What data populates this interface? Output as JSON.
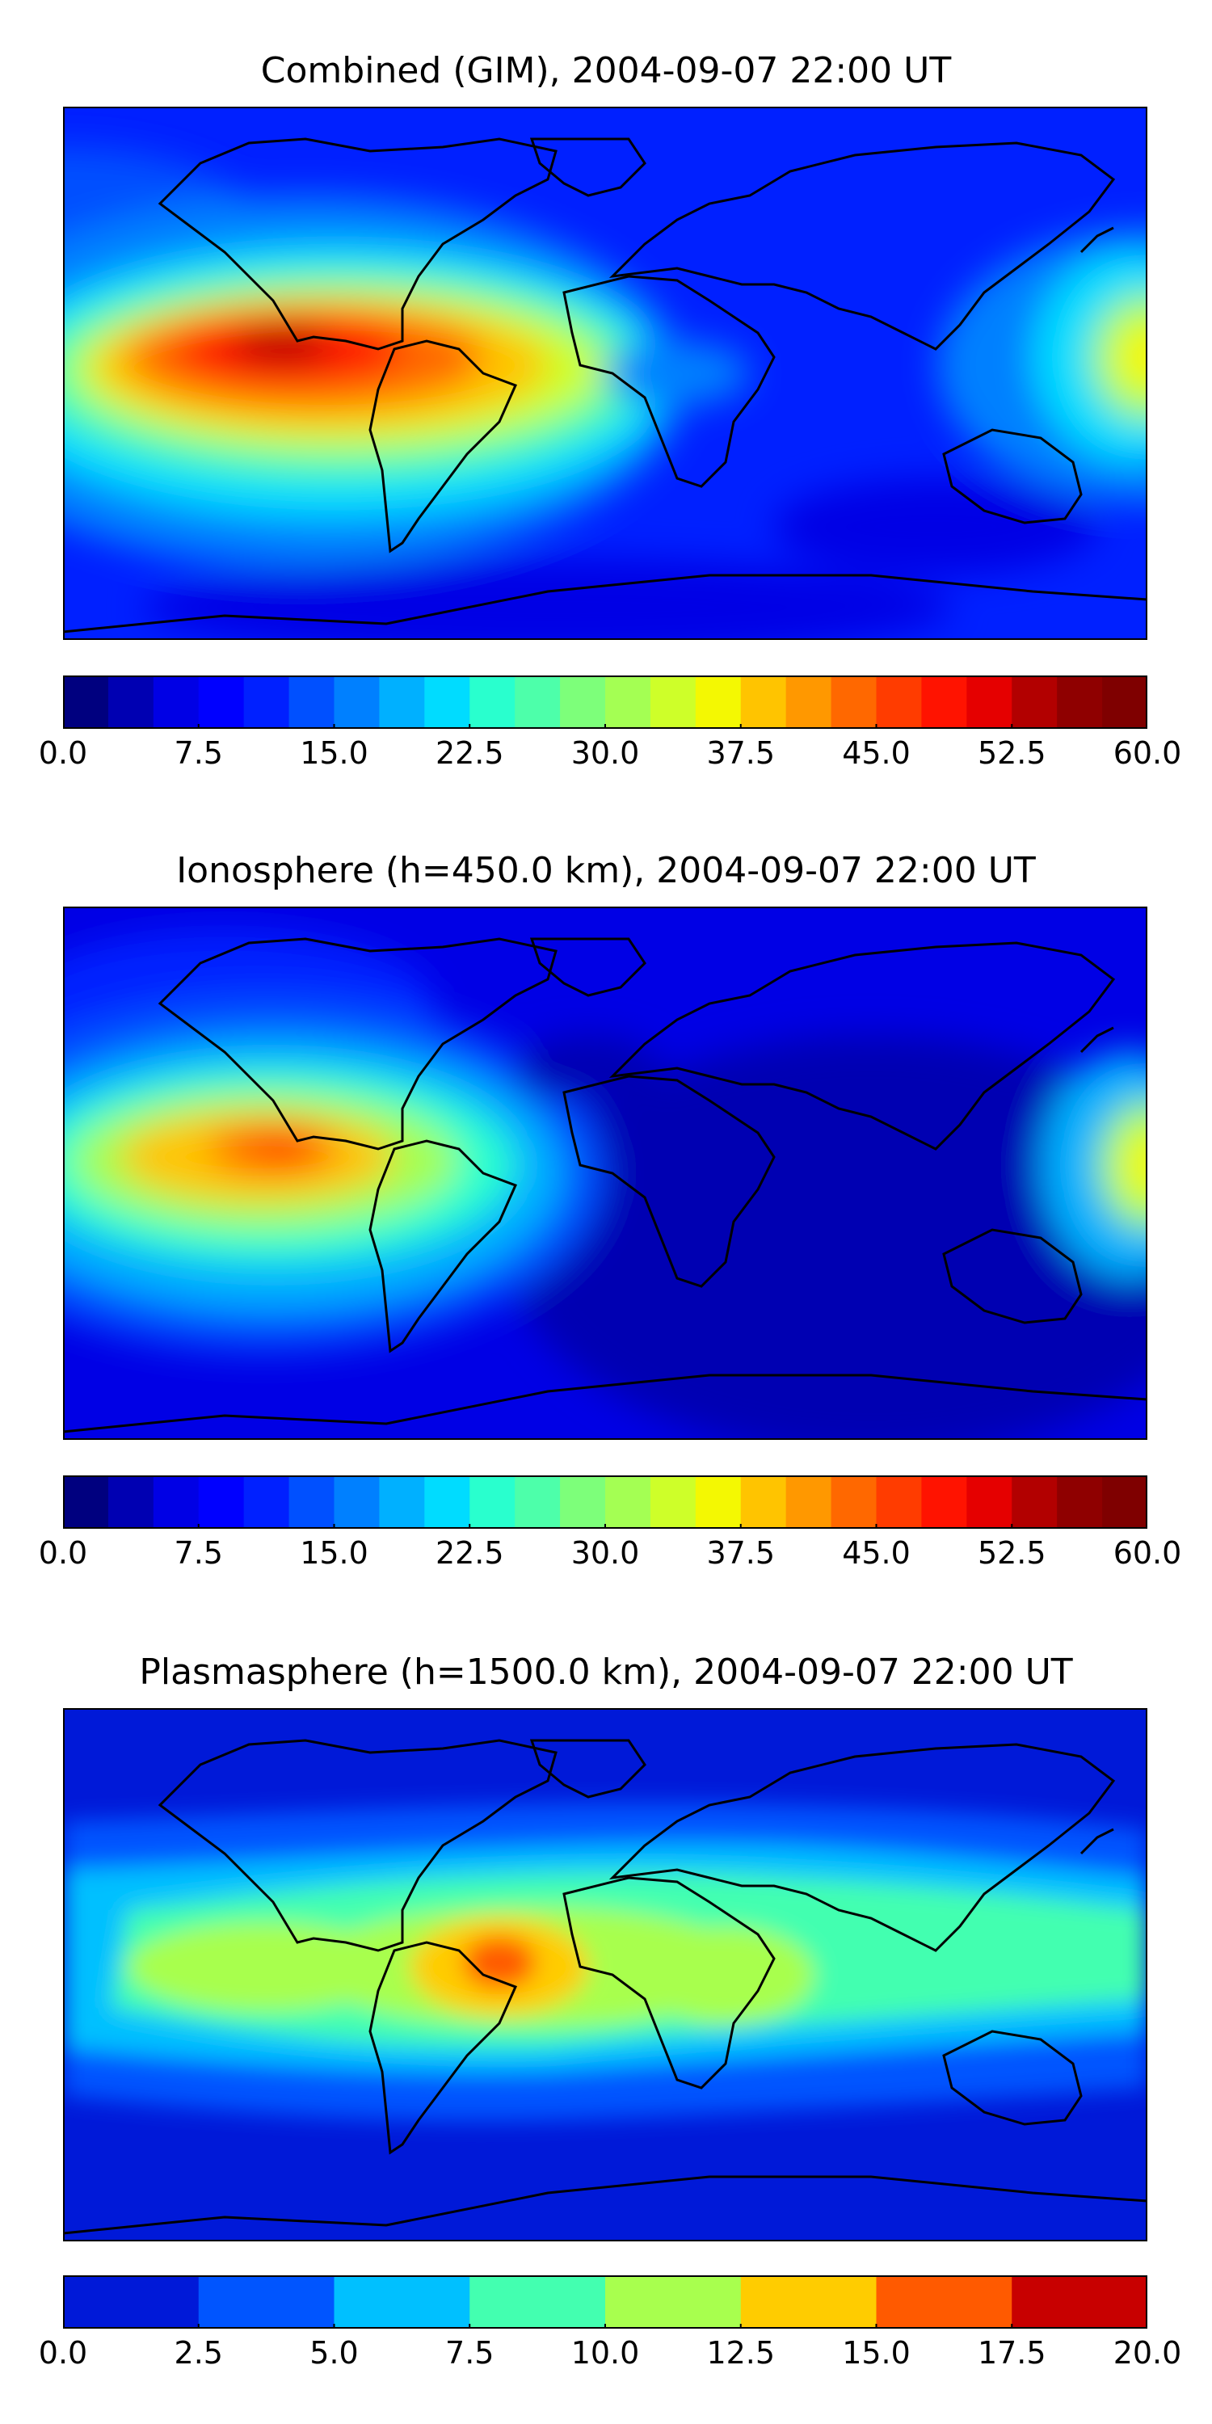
{
  "panels": [
    {
      "title": "Combined (GIM), 2004-09-07 22:00 UT",
      "variant": "combined",
      "colorbar": {
        "levels": 24,
        "min": 0,
        "max": 60,
        "colors": [
          "#00007f",
          "#0000b2",
          "#0000e5",
          "#0000ff",
          "#0020ff",
          "#0050ff",
          "#0080ff",
          "#00b0ff",
          "#00dcff",
          "#29ffce",
          "#4dffaa",
          "#7dff7a",
          "#a4ff53",
          "#ceff29",
          "#f4f802",
          "#ffc400",
          "#ff9800",
          "#ff6800",
          "#ff3c00",
          "#ff1300",
          "#e50000",
          "#b20000",
          "#8f0000",
          "#7f0000"
        ],
        "tick_labels": [
          "0.0",
          "7.5",
          "15.0",
          "22.5",
          "30.0",
          "37.5",
          "45.0",
          "52.5",
          "60.0"
        ]
      }
    },
    {
      "title": "Ionosphere  (h=450.0 km), 2004-09-07 22:00 UT",
      "variant": "iono",
      "colorbar": {
        "levels": 24,
        "min": 0,
        "max": 60,
        "colors": [
          "#00007f",
          "#0000b2",
          "#0000e5",
          "#0000ff",
          "#0020ff",
          "#0050ff",
          "#0080ff",
          "#00b0ff",
          "#00dcff",
          "#29ffce",
          "#4dffaa",
          "#7dff7a",
          "#a4ff53",
          "#ceff29",
          "#f4f802",
          "#ffc400",
          "#ff9800",
          "#ff6800",
          "#ff3c00",
          "#ff1300",
          "#e50000",
          "#b20000",
          "#8f0000",
          "#7f0000"
        ],
        "tick_labels": [
          "0.0",
          "7.5",
          "15.0",
          "22.5",
          "30.0",
          "37.5",
          "45.0",
          "52.5",
          "60.0"
        ]
      }
    },
    {
      "title": "Plasmasphere (h=1500.0 km), 2004-09-07 22:00 UT",
      "variant": "plasma",
      "colorbar": {
        "levels": 8,
        "min": 0,
        "max": 20,
        "colors": [
          "#0019d8",
          "#0055ff",
          "#00c0ff",
          "#43ffb0",
          "#a8ff4e",
          "#ffcc00",
          "#ff5a00",
          "#c80000"
        ],
        "tick_labels": [
          "0.0",
          "2.5",
          "5.0",
          "7.5",
          "10.0",
          "12.5",
          "15.0",
          "17.5",
          "20.0"
        ]
      }
    }
  ]
}
